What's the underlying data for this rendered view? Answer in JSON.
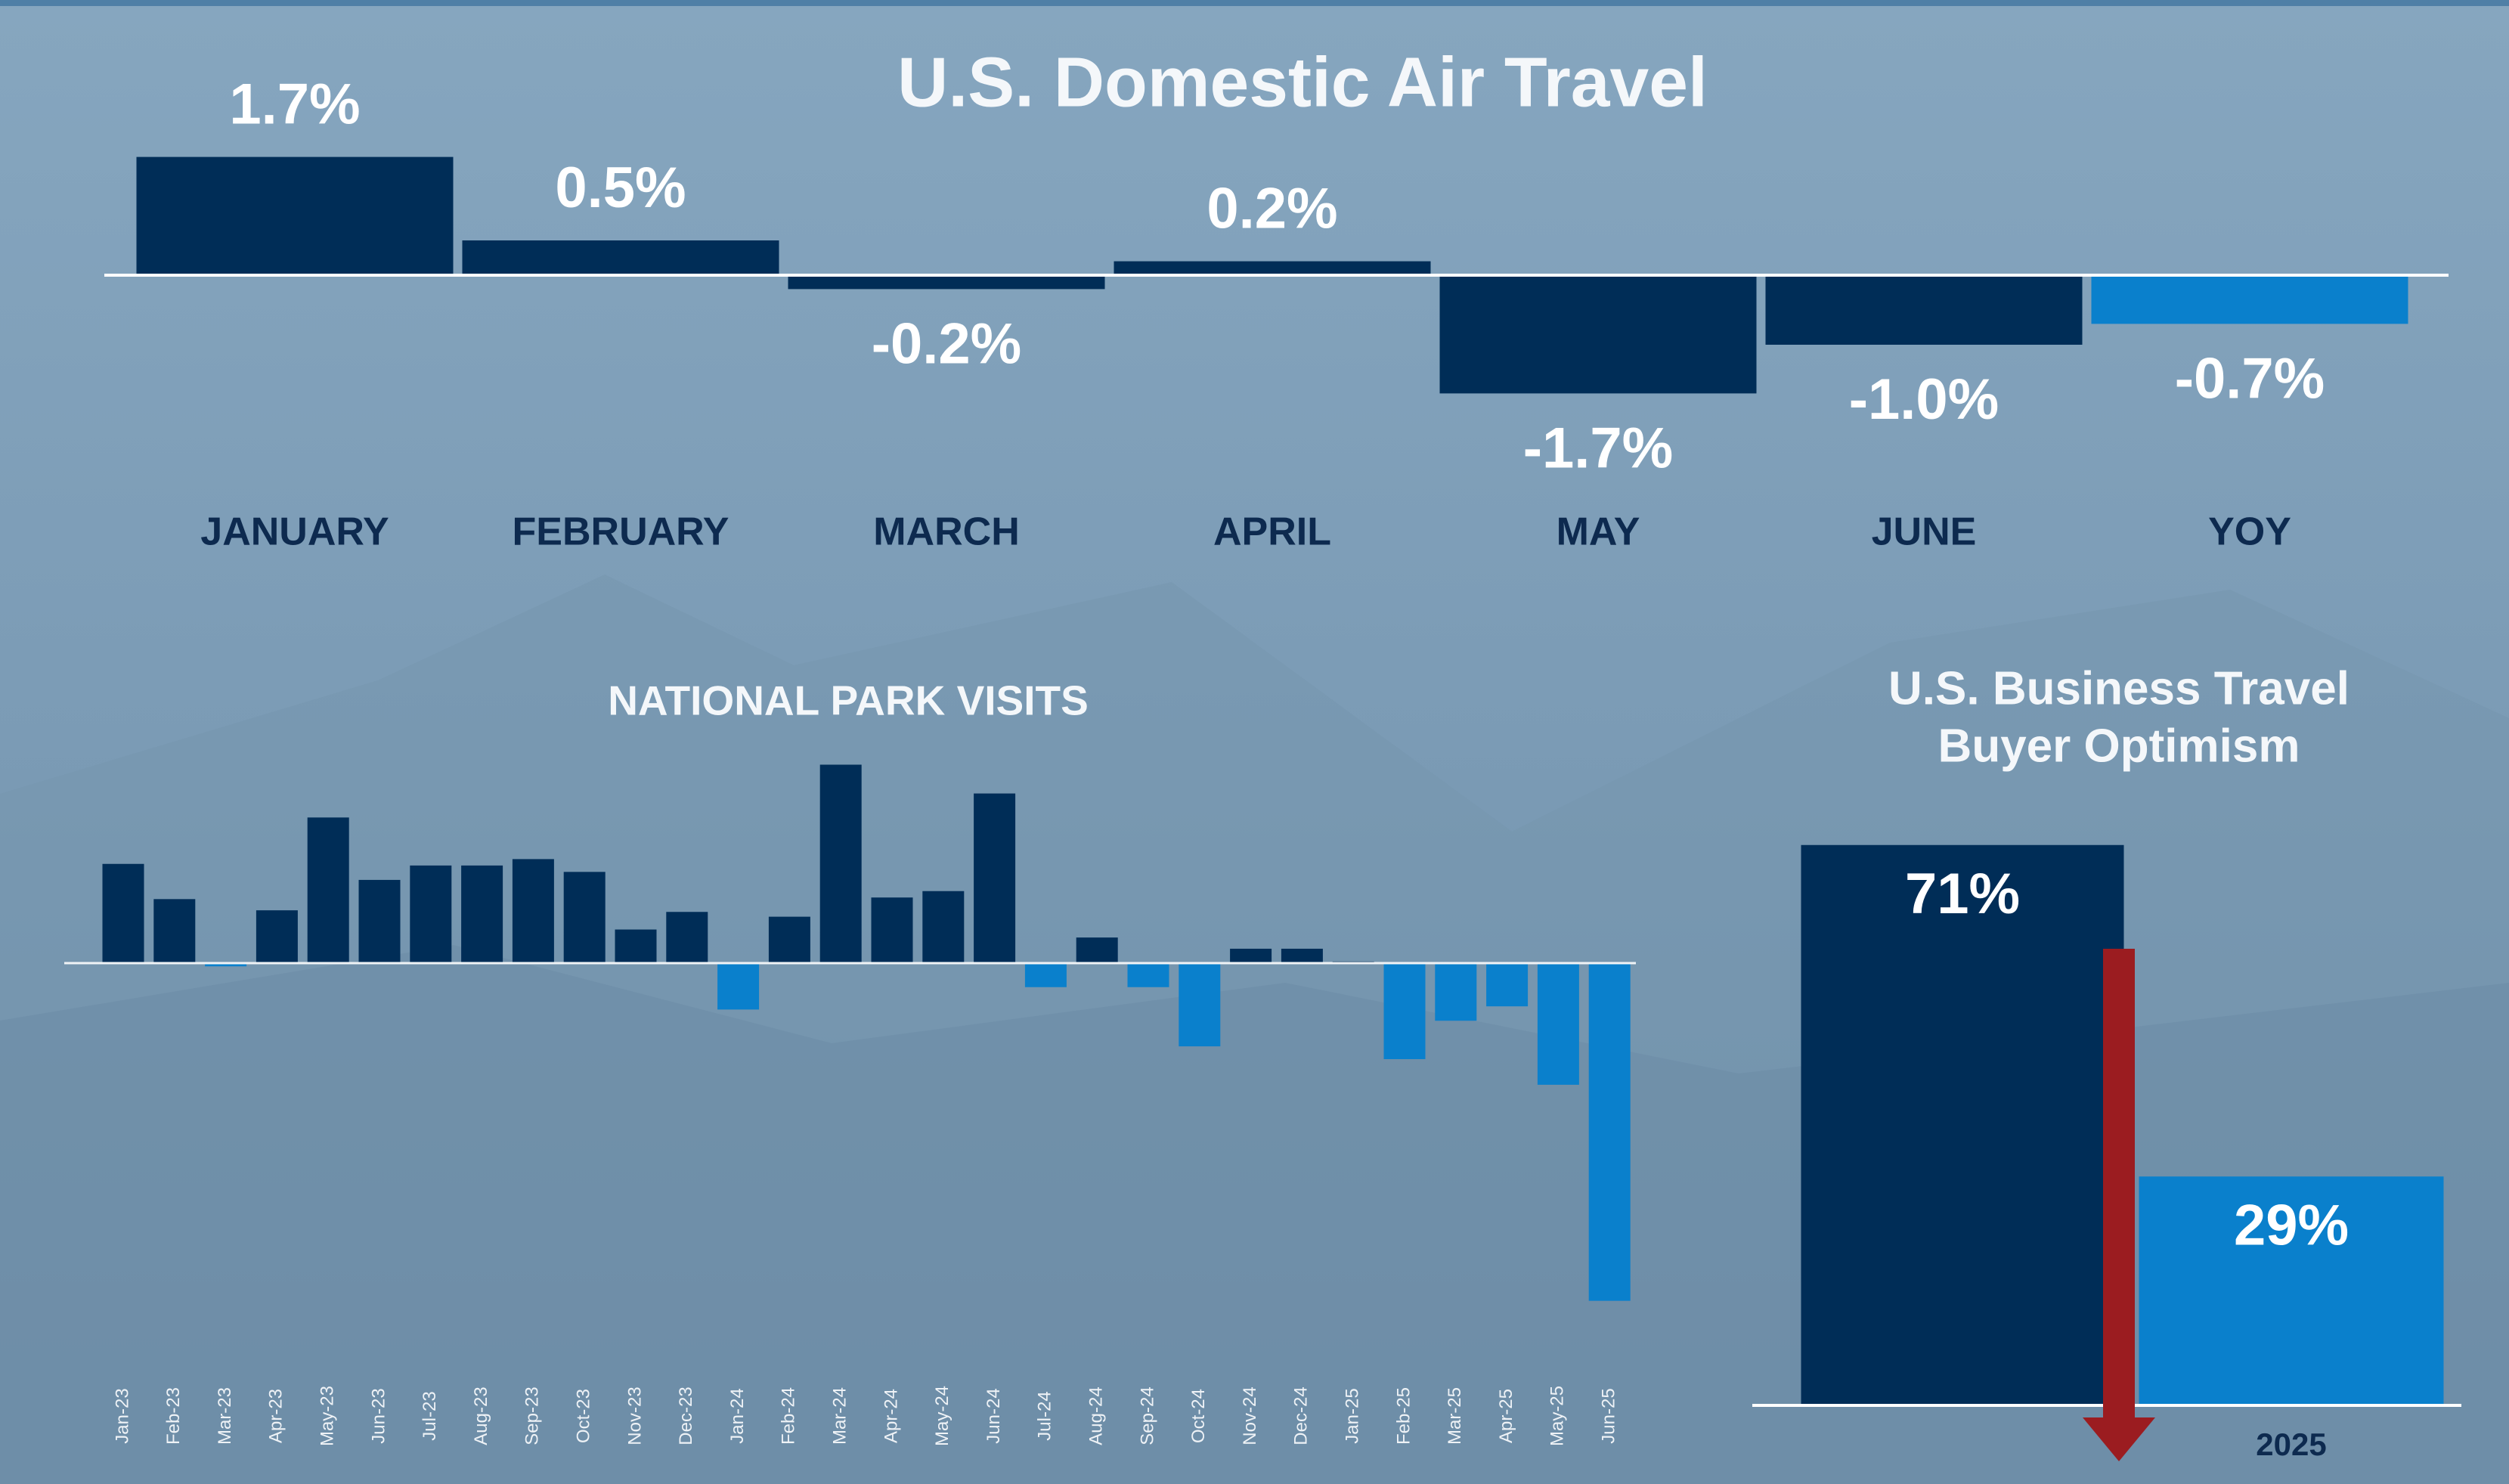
{
  "chart_data": [
    {
      "type": "bar",
      "title": "U.S. Domestic Air Travel",
      "categories": [
        "JANUARY",
        "FEBRUARY",
        "MARCH",
        "APRIL",
        "MAY",
        "JUNE",
        "YOY"
      ],
      "values": [
        1.7,
        0.5,
        -0.2,
        0.2,
        -1.7,
        -1.0,
        -0.7
      ],
      "value_labels": [
        "1.7%",
        "0.5%",
        "-0.2%",
        "0.2%",
        "-1.7%",
        "-1.0%",
        "-0.7%"
      ],
      "colors": [
        "#002d57",
        "#002d57",
        "#002d57",
        "#002d57",
        "#002d57",
        "#002d57",
        "#0a80cc"
      ]
    },
    {
      "type": "bar",
      "title": "NATIONAL PARK VISITS",
      "categories": [
        "Jan-23",
        "Feb-23",
        "Mar-23",
        "Apr-23",
        "May-23",
        "Jun-23",
        "Jul-23",
        "Aug-23",
        "Sep-23",
        "Oct-23",
        "Nov-23",
        "Dec-23",
        "Jan-24",
        "Feb-24",
        "Mar-24",
        "Apr-24",
        "May-24",
        "Jun-24",
        "Jul-24",
        "Aug-24",
        "Sep-24",
        "Oct-24",
        "Nov-24",
        "Dec-24",
        "Jan-25",
        "Feb-25",
        "Mar-25",
        "Apr-25",
        "May-25",
        "Jun-25"
      ],
      "values": [
        62,
        40,
        -2,
        33,
        91,
        52,
        61,
        61,
        65,
        57,
        21,
        32,
        -29,
        29,
        124,
        41,
        45,
        106,
        -15,
        16,
        -15,
        -52,
        9,
        9,
        1,
        -60,
        -36,
        -27,
        -76,
        -211
      ],
      "color": "#002d57",
      "negative_color": "#0a80cc"
    },
    {
      "type": "bar",
      "title": [
        "U.S. Business Travel",
        "Buyer Optimism"
      ],
      "categories": [
        null,
        "2025"
      ],
      "values": [
        71,
        29
      ],
      "value_labels": [
        "71%",
        "29%"
      ],
      "colors": [
        "#002d57",
        "#0a80cc"
      ]
    }
  ]
}
